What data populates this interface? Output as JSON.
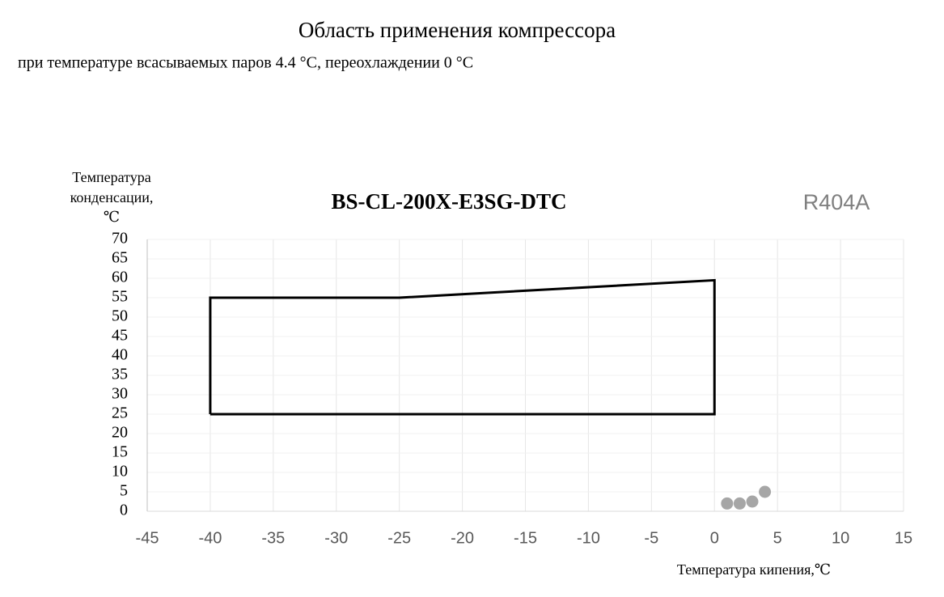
{
  "chart_data": {
    "type": "line",
    "title": "Область применения компрессора",
    "subtitle": "при температуре всасываемых паров  4.4 °C, переохлаждении 0 °C",
    "plot_title": "BS-CL-200X-E3SG-DTC",
    "annotation": "R404A",
    "y_label": [
      "Температура",
      "конденсации,",
      "℃"
    ],
    "x_label": "Температура кипения,℃",
    "xlim": [
      -45,
      15
    ],
    "ylim": [
      0,
      70
    ],
    "xticks": [
      -45,
      -40,
      -35,
      -30,
      -25,
      -20,
      -15,
      -10,
      -5,
      0,
      5,
      10,
      15
    ],
    "yticks": [
      0,
      5,
      10,
      15,
      20,
      25,
      30,
      35,
      40,
      45,
      50,
      55,
      60,
      65,
      70
    ],
    "grid": true,
    "series": [
      {
        "color": "#000000",
        "x": [
          -40,
          -40,
          -25,
          0,
          0,
          -40
        ],
        "values": [
          25,
          55,
          55,
          59.5,
          25,
          25
        ]
      },
      {
        "type": "scatter",
        "color": "#a6a6a6",
        "x": [
          1,
          2,
          3,
          4
        ],
        "values": [
          2,
          2,
          2.5,
          5
        ]
      }
    ]
  }
}
